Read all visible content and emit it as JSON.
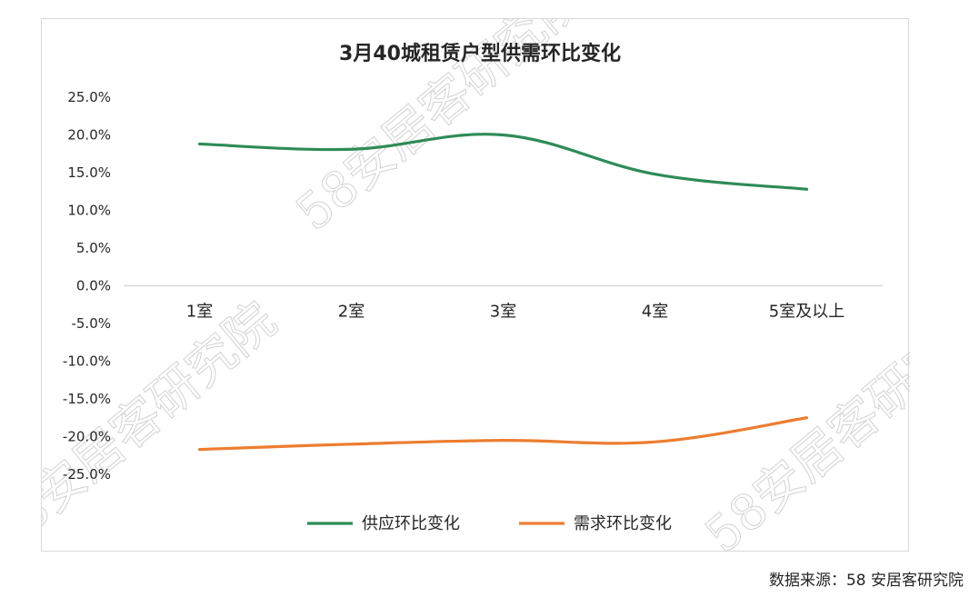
{
  "chart_data": {
    "type": "line",
    "title": "3月40城租赁户型供需环比变化",
    "categories": [
      "1室",
      "2室",
      "3室",
      "4室",
      "5室及以上"
    ],
    "series": [
      {
        "name": "供应环比变化",
        "color": "#2e8b57",
        "values": [
          18.8,
          18.1,
          20.0,
          14.8,
          12.8
        ]
      },
      {
        "name": "需求环比变化",
        "color": "#ed7d31",
        "values": [
          -21.7,
          -21.0,
          -20.5,
          -20.7,
          -17.5
        ]
      }
    ],
    "ylim": [
      -25,
      25
    ],
    "yticks": [
      "25.0%",
      "20.0%",
      "15.0%",
      "10.0%",
      "5.0%",
      "0.0%",
      "-5.0%",
      "-10.0%",
      "-15.0%",
      "-20.0%",
      "-25.0%"
    ],
    "grid": false,
    "legend_position": "bottom"
  },
  "watermark": "58安居客研究院",
  "source_note": "数据来源：58 安居客研究院"
}
